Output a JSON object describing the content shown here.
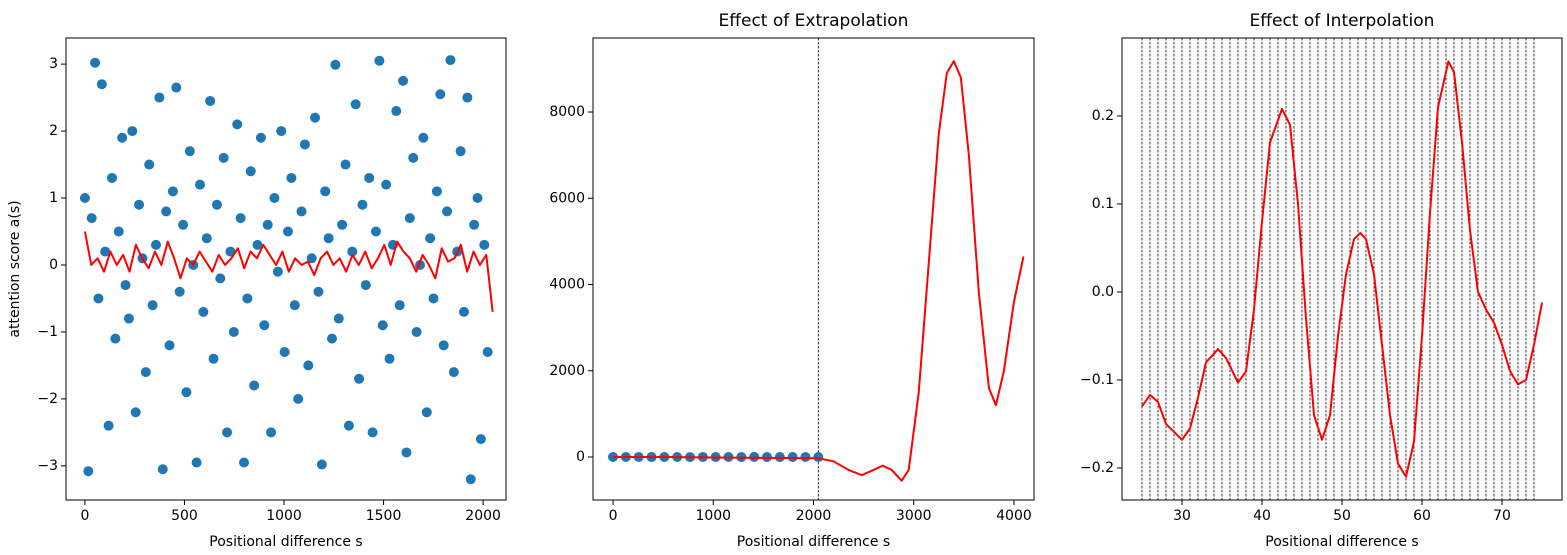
{
  "chart_data": [
    {
      "type": "scatter",
      "xlabel": "Positional difference s",
      "ylabel": "attention score a(s)",
      "xlim": [
        -95,
        2115
      ],
      "ylim": [
        -3.51,
        3.39
      ],
      "xticks": [
        0,
        500,
        1000,
        1500,
        2000
      ],
      "yticks": [
        {
          "value": -3,
          "label": "−3"
        },
        {
          "value": -2,
          "label": "−2"
        },
        {
          "value": -1,
          "label": "−1"
        },
        0,
        1,
        2,
        3
      ],
      "series": [
        {
          "kind": "scatter",
          "color": "#1f77b4",
          "x": [
            0,
            17,
            34,
            51,
            68,
            85,
            102,
            119,
            136,
            153,
            170,
            187,
            204,
            221,
            238,
            255,
            272,
            289,
            306,
            323,
            340,
            357,
            374,
            391,
            408,
            425,
            442,
            459,
            476,
            493,
            510,
            527,
            544,
            561,
            578,
            595,
            612,
            629,
            646,
            663,
            680,
            697,
            714,
            731,
            748,
            765,
            782,
            799,
            816,
            833,
            850,
            867,
            884,
            901,
            918,
            935,
            952,
            969,
            986,
            1003,
            1020,
            1037,
            1054,
            1071,
            1088,
            1105,
            1122,
            1139,
            1156,
            1173,
            1190,
            1207,
            1224,
            1241,
            1258,
            1275,
            1292,
            1309,
            1326,
            1343,
            1360,
            1377,
            1394,
            1411,
            1428,
            1445,
            1462,
            1479,
            1496,
            1513,
            1530,
            1547,
            1564,
            1581,
            1598,
            1615,
            1632,
            1649,
            1666,
            1683,
            1700,
            1717,
            1734,
            1751,
            1768,
            1785,
            1802,
            1819,
            1836,
            1853,
            1870,
            1887,
            1904,
            1921,
            1938,
            1955,
            1972,
            1989,
            2006,
            2023
          ],
          "values": [
            1.0,
            -3.08,
            0.7,
            3.02,
            -0.5,
            2.7,
            0.2,
            -2.4,
            1.3,
            -1.1,
            0.5,
            1.9,
            -0.3,
            -0.8,
            2.0,
            -2.2,
            0.9,
            0.1,
            -1.6,
            1.5,
            -0.6,
            0.3,
            2.5,
            -3.05,
            0.8,
            -1.2,
            1.1,
            2.65,
            -0.4,
            0.6,
            -1.9,
            1.7,
            0.0,
            -2.95,
            1.2,
            -0.7,
            0.4,
            2.45,
            -1.4,
            0.9,
            -0.2,
            1.6,
            -2.5,
            0.2,
            -1.0,
            2.1,
            0.7,
            -2.95,
            -0.5,
            1.4,
            -1.8,
            0.3,
            1.9,
            -0.9,
            0.6,
            -2.5,
            1.0,
            -0.1,
            2.0,
            -1.3,
            0.5,
            1.3,
            -0.6,
            -2.0,
            0.8,
            1.8,
            -1.5,
            0.1,
            2.2,
            -0.4,
            -2.98,
            1.1,
            0.4,
            -1.1,
            2.99,
            -0.8,
            0.6,
            1.5,
            -2.4,
            0.2,
            2.4,
            -1.7,
            0.9,
            -0.3,
            1.3,
            -2.5,
            0.5,
            3.05,
            -0.9,
            1.2,
            -1.4,
            0.3,
            2.3,
            -0.6,
            2.75,
            -2.8,
            0.7,
            1.6,
            -1.0,
            0.0,
            1.9,
            -2.2,
            0.4,
            -0.5,
            1.1,
            2.55,
            -1.2,
            0.8,
            3.06,
            -1.6,
            0.2,
            1.7,
            -0.7,
            2.5,
            -3.2,
            0.6,
            1.0,
            -2.6,
            0.3,
            -1.3
          ]
        },
        {
          "kind": "line",
          "color": "#ff0000",
          "x": [
            0,
            32,
            64,
            96,
            128,
            160,
            192,
            224,
            256,
            288,
            320,
            352,
            384,
            416,
            448,
            480,
            512,
            544,
            576,
            608,
            640,
            672,
            704,
            736,
            768,
            800,
            832,
            864,
            896,
            928,
            960,
            992,
            1024,
            1056,
            1088,
            1120,
            1152,
            1184,
            1216,
            1248,
            1280,
            1312,
            1344,
            1376,
            1408,
            1440,
            1472,
            1504,
            1536,
            1568,
            1600,
            1632,
            1664,
            1696,
            1728,
            1760,
            1792,
            1824,
            1856,
            1888,
            1920,
            1952,
            1984,
            2016,
            2048
          ],
          "values": [
            0.5,
            0.0,
            0.1,
            -0.1,
            0.2,
            0.0,
            0.15,
            -0.1,
            0.3,
            0.1,
            -0.05,
            0.2,
            0.0,
            0.35,
            0.1,
            -0.2,
            0.1,
            0.0,
            0.2,
            0.05,
            -0.1,
            0.15,
            0.0,
            0.1,
            0.25,
            -0.05,
            0.2,
            0.1,
            0.3,
            0.15,
            0.0,
            0.2,
            -0.1,
            0.1,
            0.0,
            0.05,
            -0.15,
            0.1,
            0.2,
            0.0,
            0.1,
            -0.1,
            0.15,
            0.0,
            0.2,
            -0.05,
            0.1,
            0.3,
            0.0,
            0.35,
            0.2,
            0.1,
            -0.1,
            0.15,
            0.0,
            -0.2,
            0.25,
            0.05,
            0.1,
            0.3,
            -0.1,
            0.2,
            0.0,
            0.15,
            -0.7
          ]
        }
      ]
    },
    {
      "type": "scatter",
      "title": "Effect of Extrapolation",
      "xlabel": "Positional difference s",
      "xlim": [
        -200,
        4200
      ],
      "ylim": [
        -997,
        9716
      ],
      "xticks": [
        0,
        1000,
        2000,
        3000,
        4000
      ],
      "yticks": [
        0,
        2000,
        4000,
        6000,
        8000
      ],
      "vlines": [
        2048
      ],
      "series": [
        {
          "kind": "scatter",
          "color": "#1f77b4",
          "x": [
            0,
            128,
            256,
            384,
            512,
            640,
            768,
            896,
            1024,
            1152,
            1280,
            1408,
            1536,
            1664,
            1792,
            1920,
            2048
          ],
          "values": [
            1.0,
            -0.5,
            0.3,
            -1.2,
            0.8,
            0.1,
            -2.0,
            1.5,
            -0.4,
            0.6,
            -0.9,
            2.1,
            0.2,
            -1.3,
            0.7,
            -0.1,
            -0.7
          ]
        },
        {
          "kind": "line",
          "color": "#ff0000",
          "x": [
            0,
            500,
            1000,
            1500,
            2048,
            2200,
            2350,
            2480,
            2600,
            2690,
            2780,
            2880,
            2950,
            3050,
            3150,
            3250,
            3330,
            3400,
            3470,
            3550,
            3650,
            3750,
            3820,
            3900,
            4000,
            4095
          ],
          "values": [
            0,
            0,
            -10,
            -20,
            -30,
            -100,
            -300,
            -420,
            -300,
            -200,
            -300,
            -550,
            -300,
            1500,
            4500,
            7500,
            8900,
            9180,
            8800,
            7000,
            3800,
            1600,
            1200,
            2000,
            3600,
            4650
          ]
        }
      ]
    },
    {
      "type": "line",
      "title": "Effect of Interpolation",
      "xlabel": "Positional difference s",
      "xlim": [
        22.5,
        77.5
      ],
      "ylim": [
        -0.2364,
        0.2886
      ],
      "xticks": [
        30,
        40,
        50,
        60,
        70
      ],
      "yticks": [
        {
          "value": -0.2,
          "label": "−0.2"
        },
        {
          "value": -0.1,
          "label": "−0.1"
        },
        {
          "value": 0,
          "label": "0.0"
        },
        0.1,
        0.2
      ],
      "vlines": [
        25,
        26,
        27,
        28,
        29,
        30,
        31,
        32,
        33,
        34,
        35,
        36,
        37,
        38,
        39,
        40,
        41,
        42,
        43,
        44,
        45,
        46,
        47,
        48,
        49,
        50,
        51,
        52,
        53,
        54,
        55,
        56,
        57,
        58,
        59,
        60,
        61,
        62,
        63,
        64,
        65,
        66,
        67,
        68,
        69,
        70,
        71,
        72,
        73,
        74
      ],
      "series": [
        {
          "kind": "line",
          "color": "#ff0000",
          "x": [
            25,
            26,
            27,
            28,
            30,
            31,
            32,
            33,
            34.5,
            35.5,
            37,
            38,
            39,
            40,
            41,
            42.5,
            43.5,
            44.5,
            45.5,
            46.5,
            47.5,
            48.5,
            49.5,
            50.5,
            51.5,
            52.3,
            53,
            54,
            55,
            56,
            57,
            58,
            59,
            60,
            61,
            62,
            63.3,
            64,
            65,
            66,
            67,
            68,
            69,
            70,
            71,
            72,
            73,
            74,
            75
          ],
          "values": [
            -0.13,
            -0.117,
            -0.125,
            -0.15,
            -0.168,
            -0.155,
            -0.12,
            -0.08,
            -0.065,
            -0.075,
            -0.103,
            -0.09,
            -0.02,
            0.08,
            0.17,
            0.208,
            0.19,
            0.1,
            -0.03,
            -0.14,
            -0.168,
            -0.14,
            -0.05,
            0.02,
            0.06,
            0.067,
            0.06,
            0.02,
            -0.06,
            -0.14,
            -0.195,
            -0.21,
            -0.17,
            -0.05,
            0.09,
            0.21,
            0.262,
            0.25,
            0.17,
            0.07,
            0.0,
            -0.02,
            -0.035,
            -0.06,
            -0.09,
            -0.105,
            -0.1,
            -0.06,
            -0.012
          ]
        }
      ]
    }
  ]
}
